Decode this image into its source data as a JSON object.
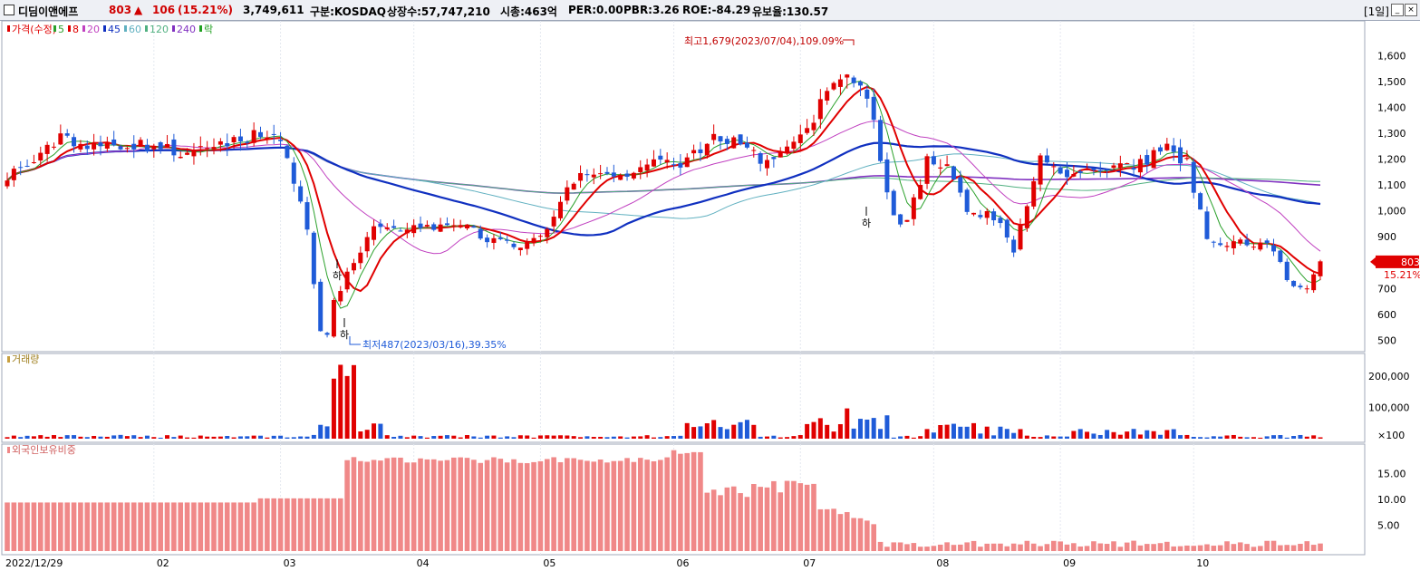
{
  "header": {
    "name": "디딤이앤에프",
    "price": "803",
    "arrow": "▲",
    "change": "106",
    "change_pct": "(15.21%)",
    "volume": "3,749,611",
    "market": "구분:KOSDAQ",
    "shares": "상장수:57,747,210",
    "mcap": "시총:463억",
    "per": "PER:0.00",
    "pbr": "PBR:3.26",
    "roe": "ROE:-84.29",
    "float": "유보율:130.57",
    "period": "[1일]"
  },
  "colors": {
    "up": "#e00000",
    "down": "#1f5bd8",
    "ma5": "#2aa02a",
    "ma8": "#e00000",
    "ma20": "#c040c0",
    "ma45": "#1030c0",
    "ma60": "#60b0c0",
    "ma120": "#50b080",
    "ma240": "#8030c0",
    "foreign": "#f08888"
  },
  "chart_data": [
    {
      "type": "candlestick",
      "legend": [
        {
          "label": "가격(수정)",
          "color": "#e00000"
        },
        {
          "label": "5",
          "color": "#2aa02a"
        },
        {
          "label": "8",
          "color": "#e00000"
        },
        {
          "label": "20",
          "color": "#c040c0"
        },
        {
          "label": "45",
          "color": "#1030c0"
        },
        {
          "label": "60",
          "color": "#60b0c0"
        },
        {
          "label": "120",
          "color": "#50b080"
        },
        {
          "label": "240",
          "color": "#8030c0"
        },
        {
          "label": "락",
          "color": "#20a020"
        }
      ],
      "x_labels": [
        "2022/12/29",
        "02",
        "03",
        "04",
        "05",
        "06",
        "07",
        "08",
        "09",
        "10"
      ],
      "y_ticks": [
        "1,600",
        "1,500",
        "1,400",
        "1,300",
        "1,200",
        "1,100",
        "1,000",
        "900",
        "800",
        "700",
        "600",
        "500"
      ],
      "ylim": [
        470,
        1720
      ],
      "current_price_tag": {
        "price": "803",
        "pct": "15.21%"
      },
      "annotations": {
        "high": "최고1,679(2023/07/04),109.09%",
        "low": "최저487(2023/03/16),39.35%",
        "limit_down": "하"
      }
    },
    {
      "type": "bar",
      "title": "거래량",
      "y_ticks": [
        "200,000",
        "100,000",
        "×100"
      ],
      "ylim": [
        0,
        260000
      ]
    },
    {
      "type": "bar",
      "title": "외국인보유비중",
      "y_ticks": [
        "15.00",
        "10.00",
        "5.00"
      ],
      "ylim": [
        0,
        20
      ]
    }
  ]
}
